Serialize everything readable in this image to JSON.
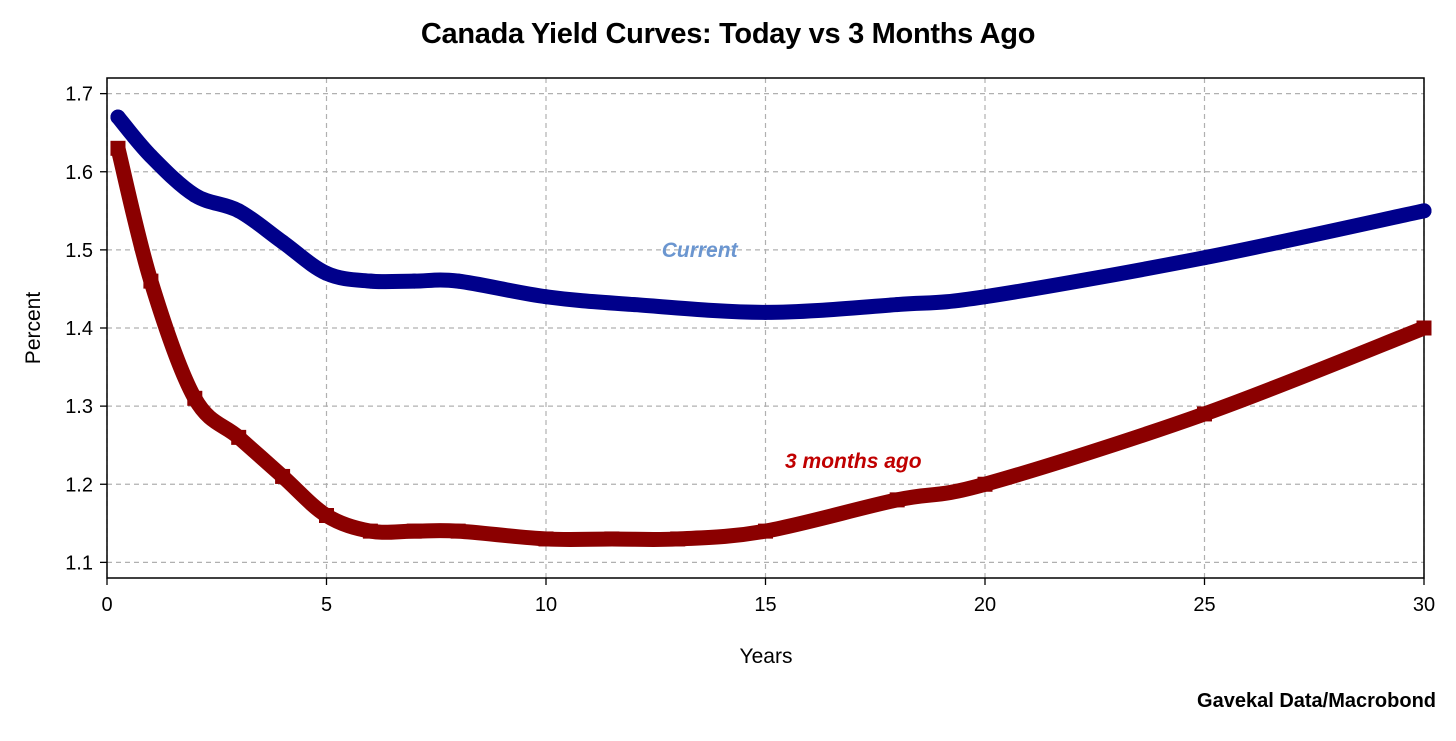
{
  "chart_data": {
    "type": "line",
    "title": "Canada Yield Curves: Today vs 3 Months Ago",
    "xlabel": "Years",
    "ylabel": "Percent",
    "xlim": [
      0,
      30
    ],
    "ylim": [
      1.08,
      1.72
    ],
    "x_ticks": [
      0,
      5,
      10,
      15,
      20,
      25,
      30
    ],
    "y_ticks": [
      1.1,
      1.2,
      1.3,
      1.4,
      1.5,
      1.6,
      1.7
    ],
    "y_tick_labels": [
      "1.1",
      "1.2",
      "1.3",
      "1.4",
      "1.5",
      "1.6",
      "1.7"
    ],
    "grid": true,
    "series": [
      {
        "name": "Current",
        "color": "#00008b",
        "label_color": "#6b96d0",
        "marker": "circle",
        "x": [
          0.25,
          1,
          2,
          3,
          4,
          5,
          6,
          7,
          8,
          10,
          12,
          15,
          18,
          20,
          25,
          30
        ],
        "y": [
          1.67,
          1.62,
          1.57,
          1.55,
          1.51,
          1.47,
          1.46,
          1.46,
          1.46,
          1.44,
          1.43,
          1.42,
          1.43,
          1.44,
          1.49,
          1.55
        ]
      },
      {
        "name": "3 months ago",
        "color": "#8b0000",
        "label_color": "#c00000",
        "marker": "square",
        "x": [
          0.25,
          1,
          2,
          3,
          4,
          5,
          6,
          7,
          8,
          10,
          11.5,
          13,
          15,
          18,
          20,
          25,
          30
        ],
        "y": [
          1.63,
          1.46,
          1.31,
          1.26,
          1.21,
          1.16,
          1.14,
          1.14,
          1.14,
          1.13,
          1.13,
          1.13,
          1.14,
          1.18,
          1.2,
          1.29,
          1.4
        ]
      }
    ],
    "annotations": [
      {
        "text": "Current",
        "x": 13.5,
        "y": 1.5,
        "color": "#6b96d0"
      },
      {
        "text": "3 months ago",
        "x": 17,
        "y": 1.23,
        "color": "#c00000"
      }
    ]
  },
  "footer": {
    "source": "Gavekal Data/Macrobond"
  }
}
